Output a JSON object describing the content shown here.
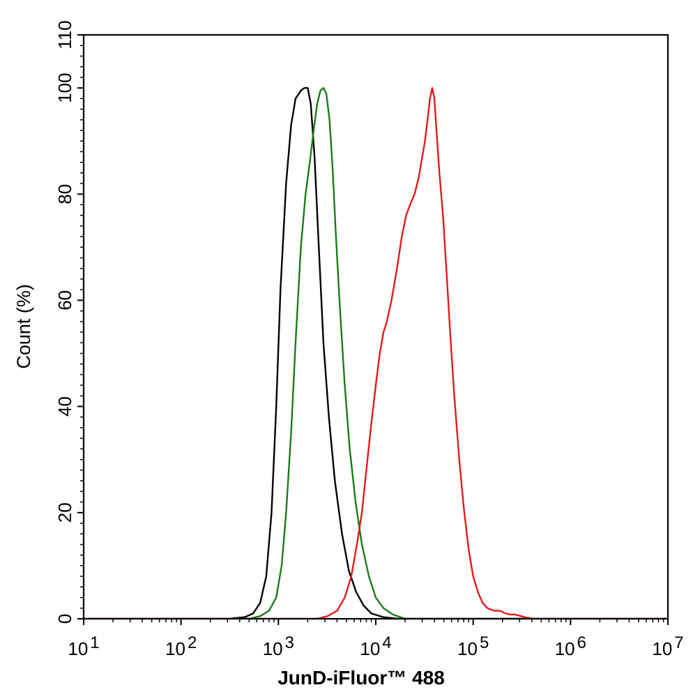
{
  "chart_data": {
    "type": "line",
    "xlabel": "JunD-iFluor™ 488",
    "ylabel": "Count  (%)",
    "x_scale": "log",
    "xlim": [
      10,
      10000000
    ],
    "ylim": [
      0,
      110
    ],
    "x_ticks": [
      {
        "value": 10,
        "base": "10",
        "exp": "1"
      },
      {
        "value": 100,
        "base": "10",
        "exp": "2"
      },
      {
        "value": 1000,
        "base": "10",
        "exp": "3"
      },
      {
        "value": 10000,
        "base": "10",
        "exp": "4"
      },
      {
        "value": 100000,
        "base": "10",
        "exp": "5"
      },
      {
        "value": 1000000,
        "base": "10",
        "exp": "6"
      },
      {
        "value": 10000000,
        "base": "10",
        "exp": "7"
      }
    ],
    "y_ticks": [
      0,
      20,
      40,
      60,
      80,
      100,
      110
    ],
    "grid": false,
    "series": [
      {
        "color": "#000000",
        "points": [
          [
            10,
            0
          ],
          [
            300,
            0
          ],
          [
            450,
            0.3
          ],
          [
            550,
            1
          ],
          [
            650,
            3
          ],
          [
            750,
            8
          ],
          [
            850,
            20
          ],
          [
            950,
            40
          ],
          [
            1050,
            62
          ],
          [
            1200,
            82
          ],
          [
            1350,
            93
          ],
          [
            1500,
            98
          ],
          [
            1700,
            99.5
          ],
          [
            1850,
            100
          ],
          [
            2000,
            100
          ],
          [
            2150,
            97
          ],
          [
            2350,
            87
          ],
          [
            2600,
            70
          ],
          [
            2900,
            52
          ],
          [
            3300,
            38
          ],
          [
            3800,
            26
          ],
          [
            4500,
            16
          ],
          [
            5300,
            9
          ],
          [
            6300,
            5
          ],
          [
            7500,
            2.5
          ],
          [
            9000,
            1
          ],
          [
            12000,
            0.3
          ],
          [
            17000,
            0
          ],
          [
            10000000,
            0
          ]
        ]
      },
      {
        "color": "#1a7a1a",
        "points": [
          [
            10,
            0
          ],
          [
            500,
            0
          ],
          [
            650,
            0.5
          ],
          [
            800,
            1.5
          ],
          [
            950,
            4
          ],
          [
            1080,
            10
          ],
          [
            1200,
            20
          ],
          [
            1350,
            35
          ],
          [
            1500,
            52
          ],
          [
            1700,
            70
          ],
          [
            1900,
            80
          ],
          [
            2100,
            86
          ],
          [
            2300,
            92
          ],
          [
            2500,
            97
          ],
          [
            2700,
            99.5
          ],
          [
            2900,
            100
          ],
          [
            3100,
            99
          ],
          [
            3350,
            94
          ],
          [
            3600,
            85
          ],
          [
            3900,
            72
          ],
          [
            4300,
            58
          ],
          [
            4800,
            44
          ],
          [
            5400,
            32
          ],
          [
            6200,
            22
          ],
          [
            7200,
            14
          ],
          [
            8500,
            8
          ],
          [
            10000,
            4
          ],
          [
            12000,
            2
          ],
          [
            15000,
            0.8
          ],
          [
            20000,
            0
          ],
          [
            10000000,
            0
          ]
        ]
      },
      {
        "color": "#e31a1a",
        "points": [
          [
            10,
            0
          ],
          [
            2500,
            0
          ],
          [
            3200,
            0.5
          ],
          [
            4000,
            1.5
          ],
          [
            4800,
            4
          ],
          [
            5600,
            8
          ],
          [
            6400,
            14
          ],
          [
            7200,
            20
          ],
          [
            8000,
            28
          ],
          [
            8900,
            36
          ],
          [
            10000,
            44
          ],
          [
            11000,
            50
          ],
          [
            12000,
            54
          ],
          [
            13000,
            56
          ],
          [
            14500,
            60
          ],
          [
            16500,
            66
          ],
          [
            18500,
            72
          ],
          [
            20500,
            76
          ],
          [
            22500,
            78
          ],
          [
            25000,
            80
          ],
          [
            27500,
            83
          ],
          [
            30000,
            87
          ],
          [
            32000,
            90
          ],
          [
            34000,
            94
          ],
          [
            36000,
            98
          ],
          [
            38000,
            100
          ],
          [
            40000,
            98
          ],
          [
            42000,
            92
          ],
          [
            45000,
            84
          ],
          [
            49000,
            76
          ],
          [
            53000,
            66
          ],
          [
            58000,
            54
          ],
          [
            64000,
            42
          ],
          [
            72000,
            30
          ],
          [
            80000,
            21
          ],
          [
            90000,
            13
          ],
          [
            100000,
            8
          ],
          [
            112000,
            5
          ],
          [
            125000,
            3
          ],
          [
            140000,
            2
          ],
          [
            165000,
            1.5
          ],
          [
            190000,
            1.5
          ],
          [
            215000,
            1
          ],
          [
            240000,
            0.8
          ],
          [
            270000,
            0.8
          ],
          [
            310000,
            0.5
          ],
          [
            360000,
            0.2
          ],
          [
            420000,
            0
          ],
          [
            10000000,
            0
          ]
        ]
      }
    ]
  }
}
